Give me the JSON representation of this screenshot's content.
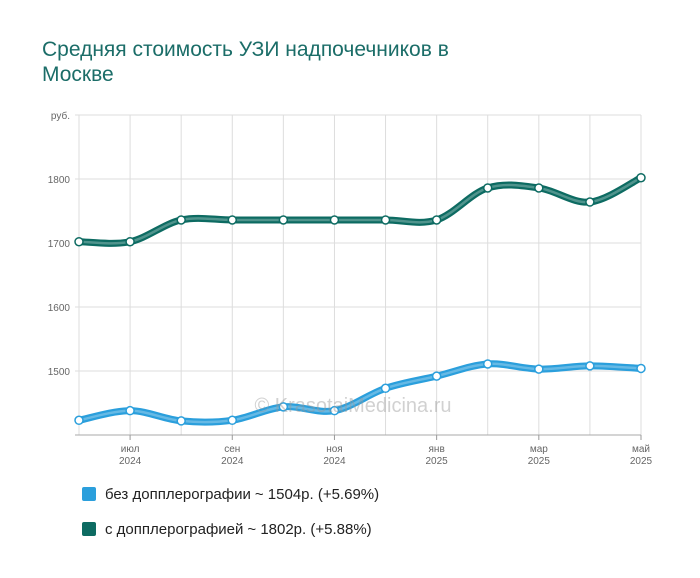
{
  "title": "Средняя стоимость УЗИ надпочечников в Москве",
  "watermark": "© KrasotaiMedicina.ru",
  "colors": {
    "title": "#1b6d68",
    "grid": "#dddddd",
    "axis": "#aaaaaa"
  },
  "chart_data": {
    "type": "line",
    "x": [
      "2024-06",
      "2024-07",
      "2024-08",
      "2024-09",
      "2024-10",
      "2024-11",
      "2024-12",
      "2025-01",
      "2025-02",
      "2025-03",
      "2025-04",
      "2025-05"
    ],
    "x_tick_labels": [
      {
        "x": "2024-07",
        "month": "июл",
        "year": "2024"
      },
      {
        "x": "2024-09",
        "month": "сен",
        "year": "2024"
      },
      {
        "x": "2024-11",
        "month": "ноя",
        "year": "2024"
      },
      {
        "x": "2025-01",
        "month": "янв",
        "year": "2025"
      },
      {
        "x": "2025-03",
        "month": "мар",
        "year": "2025"
      },
      {
        "x": "2025-05",
        "month": "май",
        "year": "2025"
      }
    ],
    "y_unit": "руб.",
    "y_ticks": [
      1500,
      1600,
      1700,
      1800
    ],
    "ylim": [
      1400,
      1900
    ],
    "grid": true,
    "legend_position": "bottom",
    "series": [
      {
        "name": "без допплерографии",
        "legend_summary": "~ 1504р. (+5.69%)",
        "color": "#2b9fdc",
        "values": [
          1423,
          1438,
          1422,
          1423,
          1444,
          1438,
          1473,
          1492,
          1511,
          1503,
          1508,
          1504
        ]
      },
      {
        "name": "с допплерографией",
        "legend_summary": "~ 1802р. (+5.88%)",
        "color": "#0d6b62",
        "values": [
          1702,
          1702,
          1736,
          1736,
          1736,
          1736,
          1736,
          1736,
          1786,
          1786,
          1764,
          1802
        ]
      }
    ]
  }
}
